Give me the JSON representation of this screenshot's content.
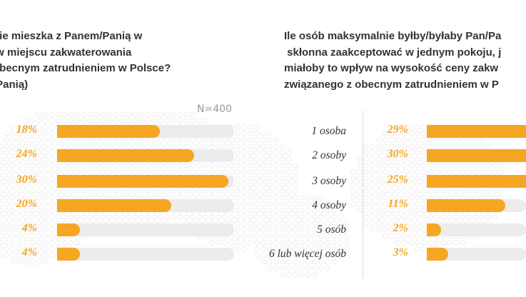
{
  "left_question": "nie mieszka z Panem/Panią w\n w miejscu zakwaterowania\nobecnym zatrudnieniem w Polsce?\n/Panią)",
  "right_question": "Ile osób maksymalnie byłby/byłaby Pan/Pa\n skłonna zaakceptować w jednym pokoju, j\nmiałoby to wpływ na wysokość ceny zakw\nzwiązanego z obecnym zatrudnieniem w P",
  "sample_size": "N=400",
  "accent_color": "#f5a623",
  "chart_data": [
    {
      "type": "bar",
      "orientation": "horizontal",
      "title": "",
      "categories": [
        "",
        "",
        "",
        "",
        "",
        ""
      ],
      "values": [
        18,
        24,
        30,
        20,
        4,
        4
      ],
      "value_labels": [
        "18%",
        "24%",
        "30%",
        "20%",
        "4%",
        "4%"
      ],
      "xlim": [
        0,
        30
      ],
      "grid": false
    },
    {
      "type": "bar",
      "orientation": "horizontal",
      "title": "",
      "categories": [
        "1 osoba",
        "2 osoby",
        "3 osoby",
        "4 osoby",
        "5 osób",
        "6 lub więcej osób"
      ],
      "values": [
        29,
        30,
        25,
        11,
        2,
        3
      ],
      "value_labels": [
        "29%",
        "30%",
        "25%",
        "11%",
        "2%",
        "3%"
      ],
      "grid": false
    }
  ]
}
